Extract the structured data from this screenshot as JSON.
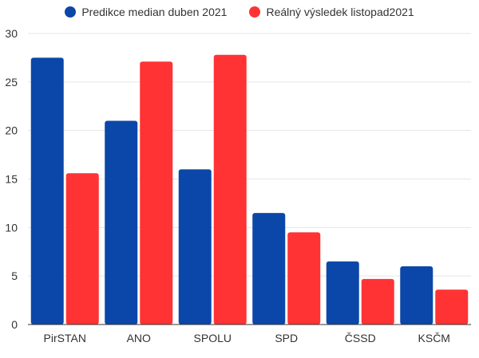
{
  "colors": {
    "series1": "#0b47a8",
    "series2": "#ff3334",
    "grid": "#e6e6e6",
    "text": "#333333"
  },
  "chart_data": {
    "type": "bar",
    "title": "",
    "xlabel": "",
    "ylabel": "",
    "ylim": [
      0,
      30
    ],
    "yticks": [
      "0",
      "5",
      "10",
      "15",
      "20",
      "25",
      "30"
    ],
    "grid": true,
    "legend_position": "top-center",
    "categories": [
      "PirSTAN",
      "ANO",
      "SPOLU",
      "SPD",
      "ČSSD",
      "KSČM"
    ],
    "series": [
      {
        "name": "Predikce median duben 2021",
        "color": "#0b47a8",
        "values": [
          27.5,
          21,
          16,
          11.5,
          6.5,
          6
        ]
      },
      {
        "name": "Reálný výsledek listopad2021",
        "color": "#ff3334",
        "values": [
          15.6,
          27.1,
          27.8,
          9.5,
          4.7,
          3.6
        ]
      }
    ]
  }
}
